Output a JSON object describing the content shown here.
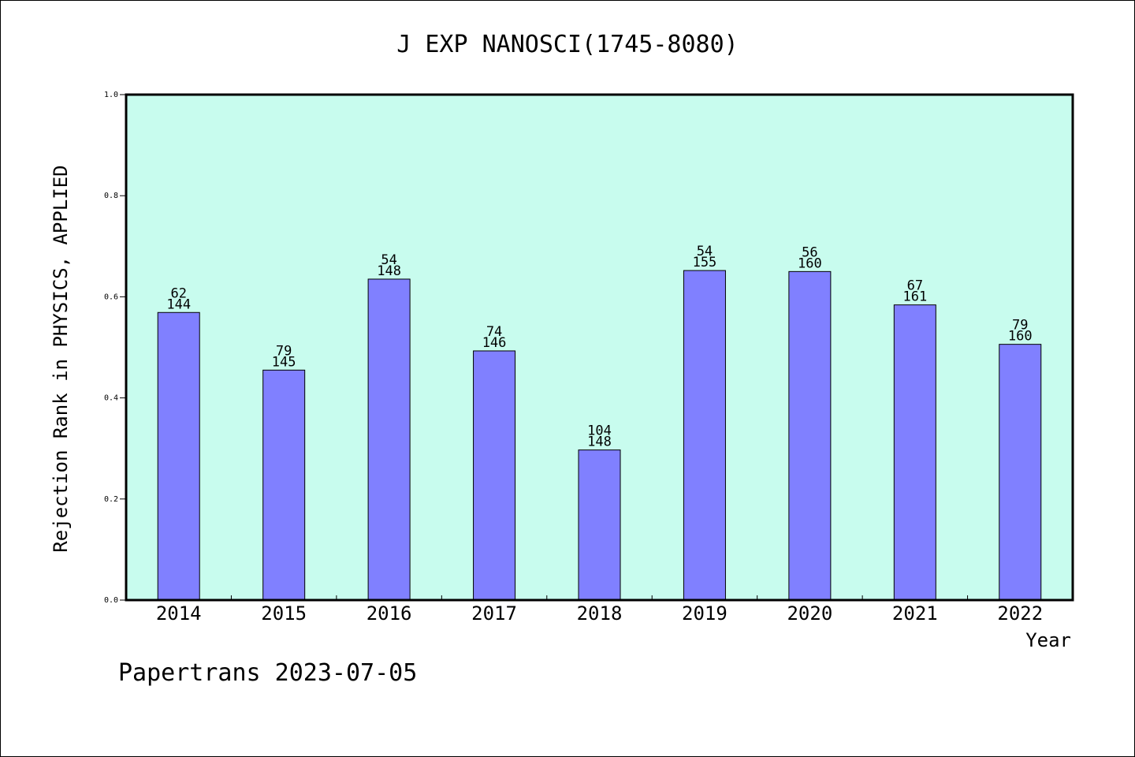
{
  "chart_data": {
    "type": "bar",
    "title": "J EXP NANOSCI(1745-8080)",
    "xlabel": "Year",
    "ylabel": "Rejection Rank in PHYSICS, APPLIED",
    "ylim": [
      0,
      1.0
    ],
    "yticks": [
      "0.0",
      "0.2",
      "0.4",
      "0.6",
      "0.8",
      "1.0"
    ],
    "grid": false,
    "categories": [
      "2014",
      "2015",
      "2016",
      "2017",
      "2018",
      "2019",
      "2020",
      "2021",
      "2022"
    ],
    "values": [
      0.569,
      0.455,
      0.635,
      0.493,
      0.297,
      0.652,
      0.65,
      0.584,
      0.506
    ],
    "rank_labels": [
      "62",
      "79",
      "54",
      "74",
      "104",
      "54",
      "56",
      "67",
      "79"
    ],
    "total_labels": [
      "144",
      "145",
      "148",
      "146",
      "148",
      "155",
      "160",
      "161",
      "160"
    ],
    "colors": {
      "background": "#c8fcee",
      "bar": "#8080ff",
      "frame": "#000000"
    }
  },
  "footer": {
    "text": "Papertrans 2023-07-05"
  }
}
